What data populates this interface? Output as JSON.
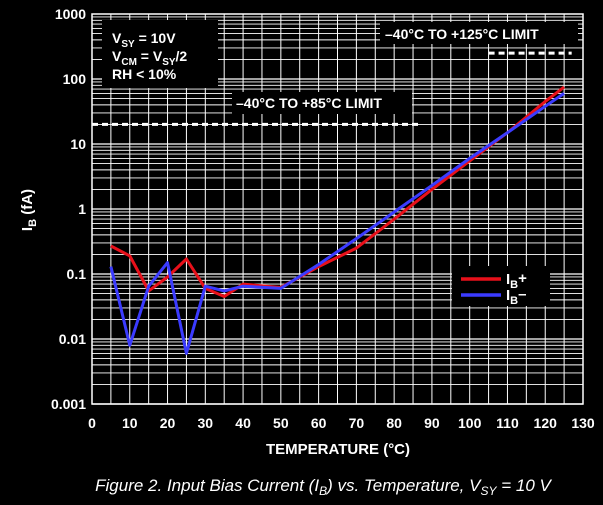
{
  "chart_data": {
    "type": "line",
    "x_title": "TEMPERATURE (°C)",
    "y_title_main": "I",
    "y_title_sub": "B",
    "y_title_unit": " (fA)",
    "y_scale": "log",
    "xlim": [
      0,
      130
    ],
    "ylim": [
      0.001,
      1000
    ],
    "x_ticks": [
      "0",
      "10",
      "20",
      "30",
      "40",
      "50",
      "60",
      "70",
      "80",
      "90",
      "100",
      "110",
      "120",
      "130"
    ],
    "y_ticks": [
      "1000",
      "100",
      "10",
      "1",
      "0.1",
      "0.01",
      "0.001"
    ],
    "conditions": [
      {
        "main": "V",
        "sub": "SY",
        "rest": " = 10V"
      },
      {
        "main": "V",
        "sub": "CM",
        "rest": " = V",
        "sub2": "SY",
        "rest2": "/2"
      },
      {
        "main": "RH < 10%"
      }
    ],
    "limits": [
      {
        "label": "–40°C TO +125°C LIMIT",
        "value": 250,
        "x_range": [
          105,
          127
        ]
      },
      {
        "label": "–40°C TO +85°C LIMIT",
        "value": 20,
        "x_range": [
          0,
          87
        ]
      }
    ],
    "series": [
      {
        "name_main": "I",
        "name_sub": "B",
        "name_sign": "+",
        "color": "#e8101a",
        "x": [
          5,
          10,
          15,
          20,
          25,
          30,
          35,
          40,
          50,
          60,
          70,
          80,
          90,
          100,
          110,
          120,
          125
        ],
        "y": [
          0.27,
          0.19,
          0.055,
          0.09,
          0.17,
          0.06,
          0.045,
          0.07,
          0.062,
          0.13,
          0.25,
          0.7,
          2,
          5.5,
          15,
          45,
          75
        ]
      },
      {
        "name_main": "I",
        "name_sub": "B",
        "name_sign": "–",
        "color": "#3b3bff",
        "x": [
          5,
          10,
          15,
          20,
          25,
          30,
          35,
          40,
          50,
          60,
          70,
          80,
          90,
          100,
          110,
          120,
          125
        ],
        "y": [
          0.13,
          0.008,
          0.065,
          0.15,
          0.006,
          0.065,
          0.055,
          0.065,
          0.06,
          0.14,
          0.35,
          0.9,
          2.3,
          6,
          15,
          38,
          60
        ]
      }
    ]
  },
  "caption": {
    "prefix": "Figure 2. Input Bias Current (I",
    "sub": "B",
    "middle": ") vs. Temperature, V",
    "sub2": "SY",
    "suffix": " = 10 V"
  }
}
